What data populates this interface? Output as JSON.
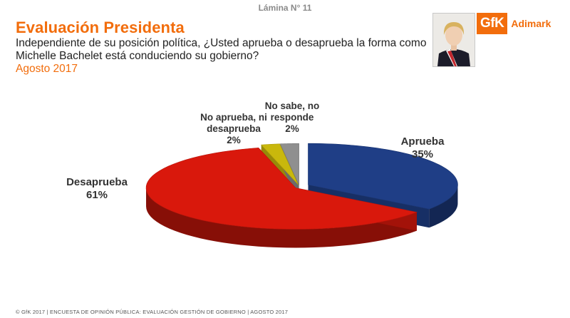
{
  "slide": {
    "number_label": "Lámina N° 11"
  },
  "header": {
    "title": "Evaluación Presidenta",
    "question": "Independiente de su posición política, ¿Usted aprueba o desaprueba la forma como Michelle Bachelet está conduciendo su gobierno?",
    "date": "Agosto 2017",
    "logo_mark": "GfK",
    "logo_text": "Adimark"
  },
  "colors": {
    "accent": "#f26d0c",
    "aprueba": "#1f3e86",
    "desaprueba": "#d9180c",
    "neutral": "#c9b80c",
    "nosabe": "#8f8f8f"
  },
  "chart_data": {
    "type": "pie",
    "title": "",
    "slices": [
      {
        "name": "Aprueba",
        "value": 35,
        "label": "35%",
        "color": "#1f3e86"
      },
      {
        "name": "Desaprueba",
        "value": 61,
        "label": "61%",
        "color": "#d9180c"
      },
      {
        "name": "No aprueba, ni desaprueba",
        "value": 2,
        "label": "2%",
        "color": "#c9b80c"
      },
      {
        "name": "No sabe, no responde",
        "value": 2,
        "label": "2%",
        "color": "#8f8f8f"
      }
    ]
  },
  "footer": {
    "text": "© GfK 2017 | ENCUESTA DE OPINIÓN PÚBLICA: EVALUACIÓN GESTIÓN DE GOBIERNO | AGOSTO 2017"
  }
}
